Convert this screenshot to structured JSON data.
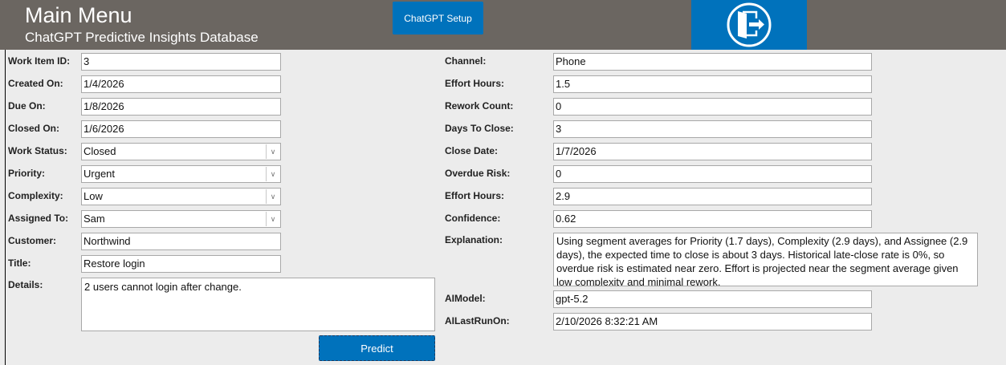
{
  "header": {
    "title": "Main Menu",
    "subtitle": "ChatGPT Predictive Insights Database",
    "setup_label": "ChatGPT Setup",
    "exit_icon": "exit-door-icon"
  },
  "left": [
    {
      "label": "Work Item ID:",
      "value": "3"
    },
    {
      "label": "Created On:",
      "value": "1/4/2026"
    },
    {
      "label": "Due On:",
      "value": "1/8/2026"
    },
    {
      "label": "Closed On:",
      "value": "1/6/2026"
    },
    {
      "label": "Work Status:",
      "value": "Closed",
      "dropdown": true
    },
    {
      "label": "Priority:",
      "value": "Urgent",
      "dropdown": true
    },
    {
      "label": "Complexity:",
      "value": "Low",
      "dropdown": true
    },
    {
      "label": "Assigned To:",
      "value": "Sam",
      "dropdown": true
    },
    {
      "label": "Customer:",
      "value": "Northwind"
    },
    {
      "label": "Title:",
      "value": "Restore login"
    }
  ],
  "details": {
    "label": "Details:",
    "value": "2 users cannot login after change."
  },
  "predict_label": "Predict",
  "right": [
    {
      "label": "Channel:",
      "value": "Phone"
    },
    {
      "label": "Effort Hours:",
      "value": "1.5"
    },
    {
      "label": "Rework Count:",
      "value": "0"
    },
    {
      "label": "Days To Close:",
      "value": "3"
    },
    {
      "label": "Close Date:",
      "value": "1/7/2026"
    },
    {
      "label": "Overdue Risk:",
      "value": "0"
    },
    {
      "label": "Effort Hours:",
      "value": "2.9"
    },
    {
      "label": "Confidence:",
      "value": "0.62"
    }
  ],
  "explanation": {
    "label": "Explanation:",
    "value": "Using segment averages for Priority (1.7 days), Complexity (2.9 days), and Assignee (2.9 days), the expected time to close is about 3 days. Historical late-close rate is 0%, so overdue risk is estimated near zero. Effort is projected near the segment average given low complexity and minimal rework."
  },
  "ai_model": {
    "label": "AIModel:",
    "value": "gpt-5.2"
  },
  "ai_last_run": {
    "label": "AILastRunOn:",
    "value": "2/10/2026 8:32:21 AM"
  }
}
